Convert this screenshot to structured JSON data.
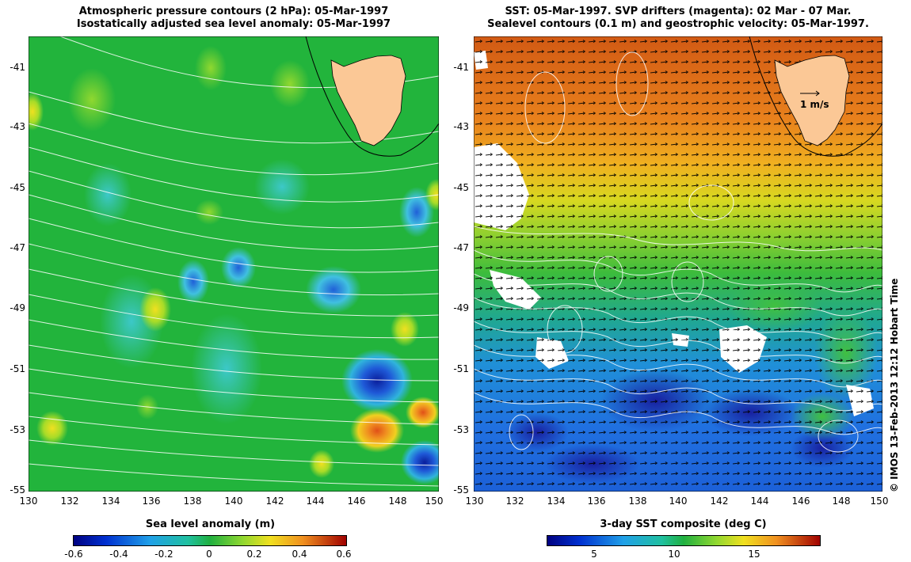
{
  "left_panel": {
    "title_line1": "Atmospheric pressure contours (2 hPa): 05-Mar-1997",
    "title_line2": "Isostatically adjusted sea level anomaly: 05-Mar-1997",
    "x_ticks": [
      "130",
      "132",
      "134",
      "136",
      "138",
      "140",
      "142",
      "144",
      "146",
      "148",
      "150"
    ],
    "y_ticks": [
      "-41",
      "-43",
      "-45",
      "-47",
      "-49",
      "-51",
      "-53",
      "-55"
    ],
    "colorbar_label": "Sea level anomaly (m)",
    "colorbar_ticks": [
      "-0.6",
      "-0.4",
      "-0.2",
      "0",
      "0.2",
      "0.4",
      "0.6"
    ],
    "colors": {
      "ocean": "#22b43c",
      "land": "#fbc896"
    }
  },
  "right_panel": {
    "title_line1": "SST: 05-Mar-1997. SVP drifters (magenta): 02 Mar - 07 Mar.",
    "title_line2": "Sealevel contours (0.1 m) and geostrophic velocity: 05-Mar-1997.",
    "x_ticks": [
      "130",
      "132",
      "134",
      "136",
      "138",
      "140",
      "142",
      "144",
      "146",
      "148",
      "150"
    ],
    "y_ticks": [
      "-41",
      "-43",
      "-45",
      "-47",
      "-49",
      "-51",
      "-53",
      "-55"
    ],
    "scale_label": "1 m/s",
    "colorbar_label": "3-day SST composite (deg C)",
    "colorbar_ticks": [
      "5",
      "10",
      "15"
    ],
    "colors": {
      "land": "#fbc896"
    }
  },
  "credit": "© IMOS 13-Feb-2013 12:12 Hobart Time"
}
